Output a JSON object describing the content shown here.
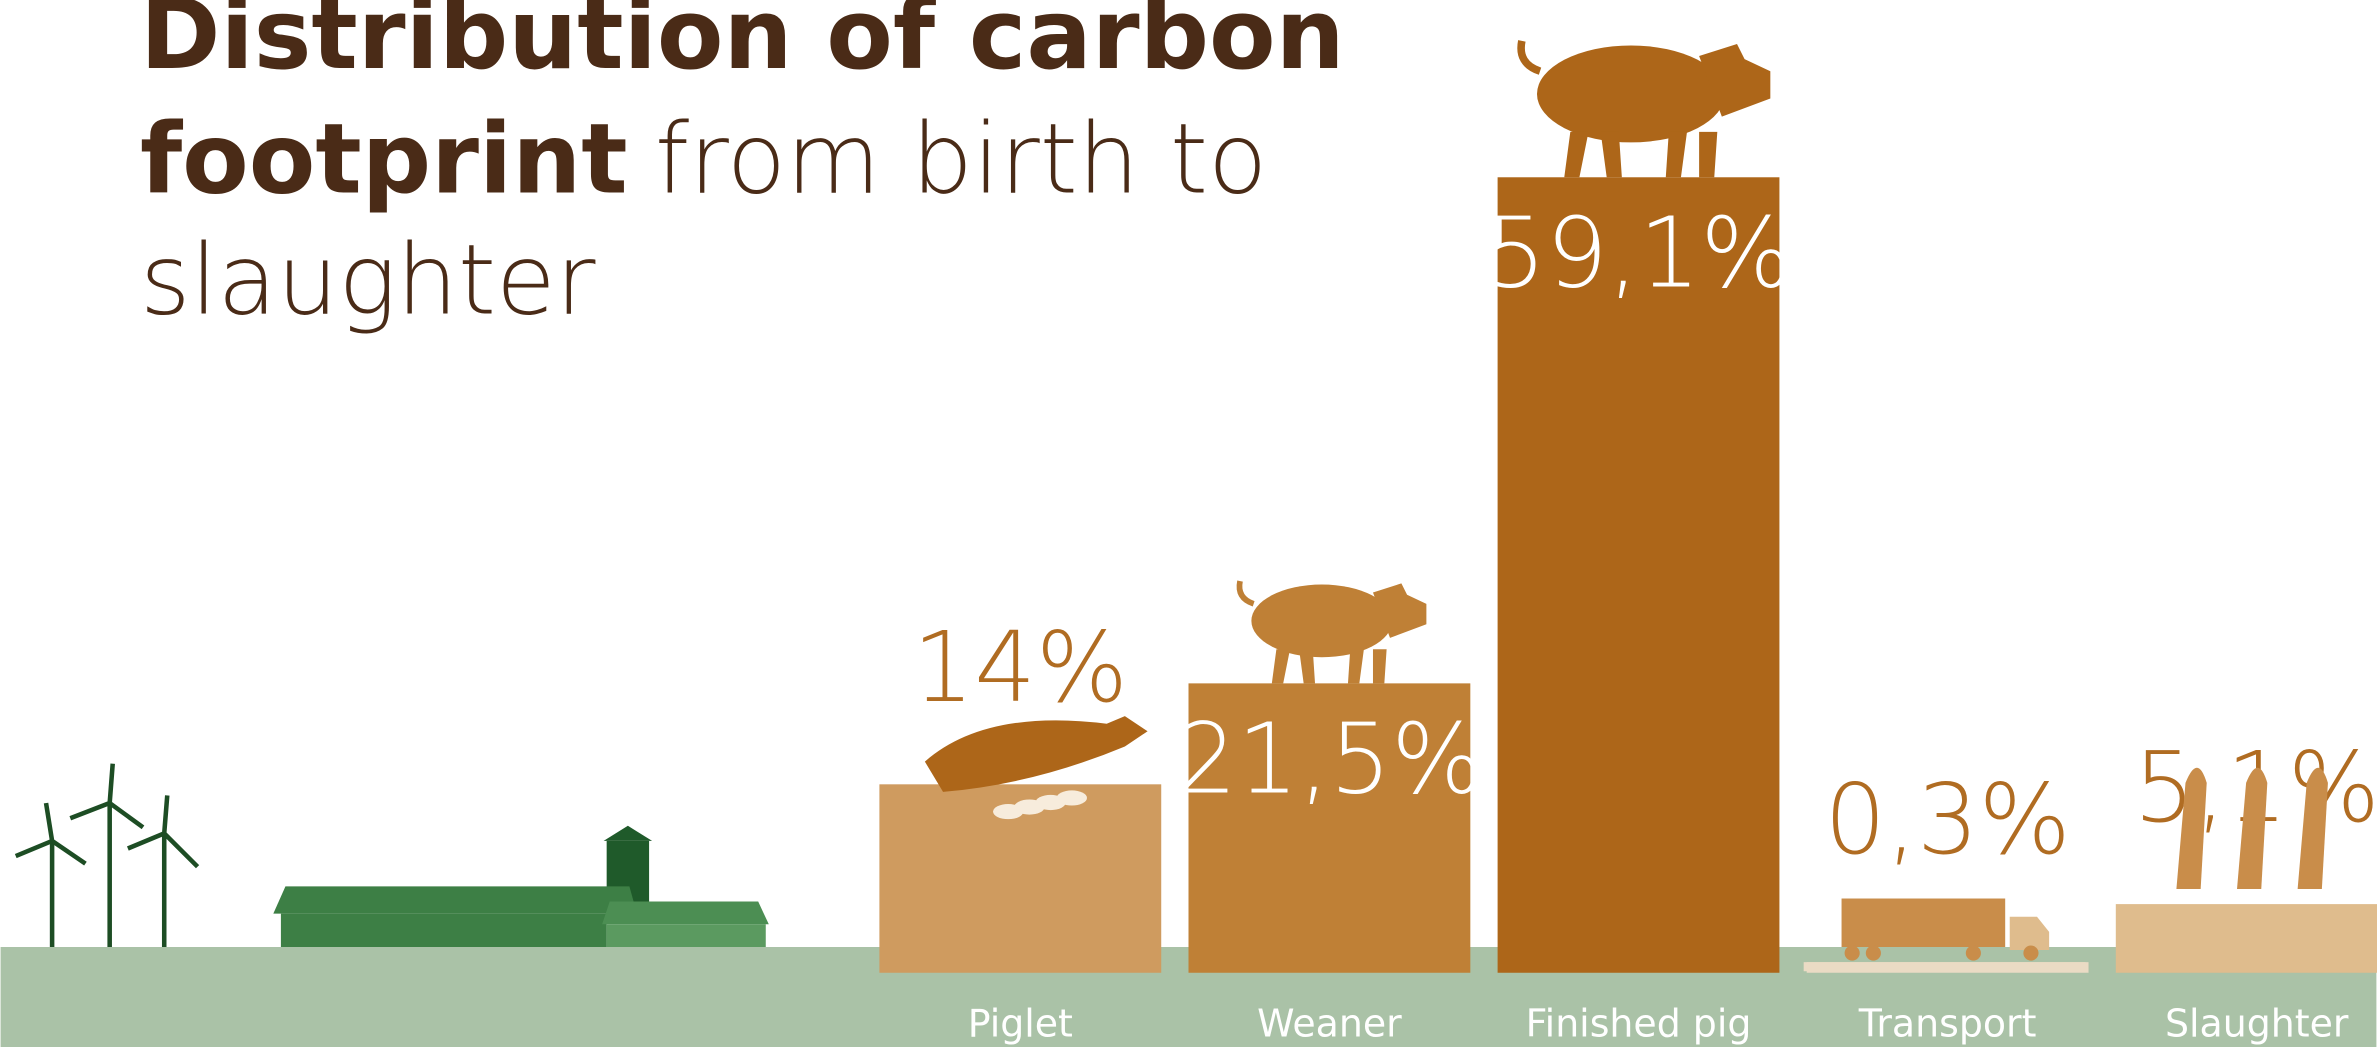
{
  "chart_data": {
    "type": "bar",
    "title": {
      "bold": [
        "Distribution of carbon",
        "footprint"
      ],
      "light": [
        "from birth to",
        "slaughter"
      ]
    },
    "categories": [
      "Piglet",
      "Weaner",
      "Finished pig",
      "Transport",
      "Slaughter"
    ],
    "values": [
      14,
      21.5,
      59.1,
      0.3,
      5.1
    ],
    "value_labels": [
      "14%",
      "21,5%",
      "59,1%",
      "0,3%",
      "5,1%"
    ],
    "colors": [
      "#cf9b5f",
      "#bf8036",
      "#ad6619",
      "#eadbc4",
      "#dfbc8d"
    ]
  }
}
